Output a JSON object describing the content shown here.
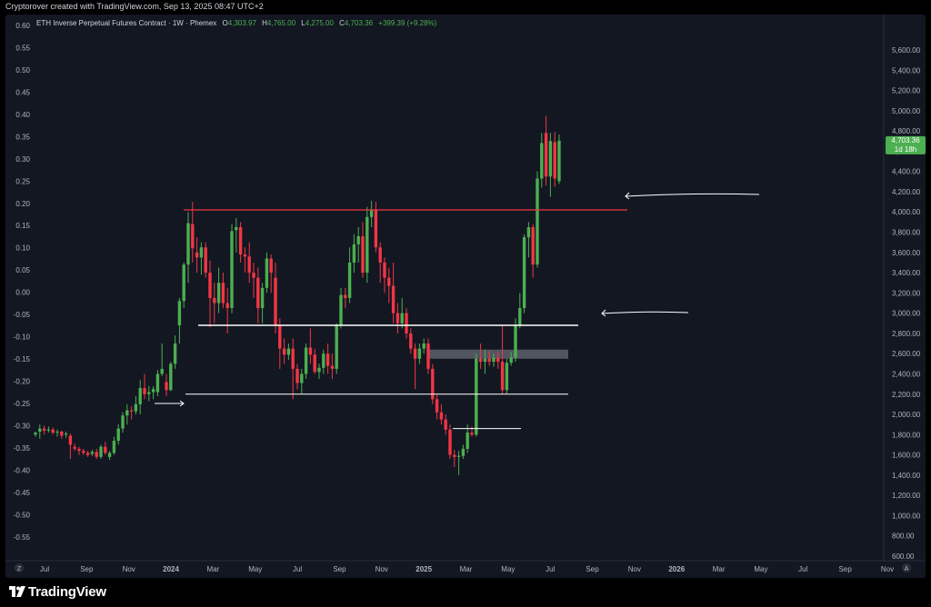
{
  "header": {
    "attribution": "Cryptorover created with TradingView.com, Sep 13, 2025 08:47 UTC+2"
  },
  "legend": {
    "symbol": "ETH Inverse Perpetual Futures Contract · 1W · Phemex",
    "o_label": "O",
    "o_value": "4,303.97",
    "h_label": "H",
    "h_value": "4,765.00",
    "l_label": "L",
    "l_value": "4,275.00",
    "c_label": "C",
    "c_value": "4,703.36",
    "change": "+399.39 (+9.28%)"
  },
  "price_tag": {
    "price": "4,703.36",
    "countdown": "1d 18h"
  },
  "footer": {
    "brand": "TradingView",
    "left_icon": "Z",
    "right_icon": "A"
  },
  "colors": {
    "background": "#131722",
    "up": "#4caf50",
    "down": "#f23645",
    "resistance": "#f23645",
    "support": "#ffffff",
    "zone": "#5d606b",
    "axis_text": "#b2b5be",
    "price_tag": "#4caf50"
  },
  "chart_data": {
    "type": "candlestick",
    "left_axis": {
      "ticks": [
        "0.60",
        "0.55",
        "0.50",
        "0.45",
        "0.40",
        "0.35",
        "0.30",
        "0.25",
        "0.20",
        "0.15",
        "0.10",
        "0.05",
        "0.00",
        "-0.05",
        "-0.10",
        "-0.15",
        "-0.20",
        "-0.25",
        "-0.30",
        "-0.35",
        "-0.40",
        "-0.45",
        "-0.50",
        "-0.55"
      ]
    },
    "right_axis": {
      "ticks": [
        "5,600.00",
        "5,400.00",
        "5,200.00",
        "5,000.00",
        "4,800.00",
        "4,600.00",
        "4,400.00",
        "4,200.00",
        "4,000.00",
        "3,800.00",
        "3,600.00",
        "3,400.00",
        "3,200.00",
        "3,000.00",
        "2,800.00",
        "2,600.00",
        "2,400.00",
        "2,200.00",
        "2,000.00",
        "1,800.00",
        "1,600.00",
        "1,400.00",
        "1,200.00",
        "1,000.00",
        "800.00",
        "600.00"
      ]
    },
    "x_axis": {
      "labels": [
        "Jul",
        "Sep",
        "Nov",
        "2024",
        "Mar",
        "May",
        "Jul",
        "Sep",
        "Nov",
        "2025",
        "Mar",
        "May",
        "Jul",
        "Sep",
        "Nov",
        "2026",
        "Mar",
        "May",
        "Jul",
        "Sep",
        "Nov"
      ],
      "bold": [
        "2024",
        "2025",
        "2026"
      ]
    },
    "horizontal_levels": [
      {
        "name": "resistance",
        "price": 4020
      },
      {
        "name": "support-upper",
        "price": 2880
      },
      {
        "name": "support-lower",
        "price": 2200
      },
      {
        "name": "local-support",
        "price": 1860
      }
    ],
    "zone": {
      "low": 2550,
      "high": 2640
    },
    "candles": [
      {
        "o": 1800,
        "h": 1830,
        "l": 1780,
        "c": 1820
      },
      {
        "o": 1830,
        "h": 1900,
        "l": 1760,
        "c": 1860
      },
      {
        "o": 1860,
        "h": 1890,
        "l": 1800,
        "c": 1840
      },
      {
        "o": 1840,
        "h": 1880,
        "l": 1820,
        "c": 1850
      },
      {
        "o": 1850,
        "h": 1870,
        "l": 1800,
        "c": 1820
      },
      {
        "o": 1820,
        "h": 1850,
        "l": 1780,
        "c": 1830
      },
      {
        "o": 1830,
        "h": 1840,
        "l": 1760,
        "c": 1790
      },
      {
        "o": 1800,
        "h": 1830,
        "l": 1770,
        "c": 1810
      },
      {
        "o": 1790,
        "h": 1810,
        "l": 1560,
        "c": 1700
      },
      {
        "o": 1680,
        "h": 1710,
        "l": 1640,
        "c": 1660
      },
      {
        "o": 1660,
        "h": 1680,
        "l": 1600,
        "c": 1640
      },
      {
        "o": 1640,
        "h": 1660,
        "l": 1600,
        "c": 1620
      },
      {
        "o": 1620,
        "h": 1640,
        "l": 1580,
        "c": 1600
      },
      {
        "o": 1610,
        "h": 1650,
        "l": 1590,
        "c": 1630
      },
      {
        "o": 1630,
        "h": 1660,
        "l": 1560,
        "c": 1580
      },
      {
        "o": 1580,
        "h": 1700,
        "l": 1560,
        "c": 1680
      },
      {
        "o": 1680,
        "h": 1730,
        "l": 1600,
        "c": 1620
      },
      {
        "o": 1580,
        "h": 1640,
        "l": 1550,
        "c": 1620
      },
      {
        "o": 1620,
        "h": 1780,
        "l": 1600,
        "c": 1740
      },
      {
        "o": 1740,
        "h": 1900,
        "l": 1700,
        "c": 1860
      },
      {
        "o": 1860,
        "h": 2020,
        "l": 1820,
        "c": 1990
      },
      {
        "o": 1990,
        "h": 2100,
        "l": 1900,
        "c": 2040
      },
      {
        "o": 2040,
        "h": 2080,
        "l": 1950,
        "c": 2030
      },
      {
        "o": 2030,
        "h": 2180,
        "l": 2000,
        "c": 2100
      },
      {
        "o": 2100,
        "h": 2340,
        "l": 2000,
        "c": 2260
      },
      {
        "o": 2260,
        "h": 2400,
        "l": 2150,
        "c": 2200
      },
      {
        "o": 2200,
        "h": 2280,
        "l": 2130,
        "c": 2220
      },
      {
        "o": 2220,
        "h": 2280,
        "l": 2150,
        "c": 2250
      },
      {
        "o": 2220,
        "h": 2440,
        "l": 2180,
        "c": 2400
      },
      {
        "o": 2400,
        "h": 2700,
        "l": 2380,
        "c": 2450
      },
      {
        "o": 2320,
        "h": 2400,
        "l": 2180,
        "c": 2240
      },
      {
        "o": 2240,
        "h": 2520,
        "l": 2230,
        "c": 2500
      },
      {
        "o": 2500,
        "h": 2780,
        "l": 2450,
        "c": 2700
      },
      {
        "o": 2880,
        "h": 3150,
        "l": 2700,
        "c": 3120
      },
      {
        "o": 3120,
        "h": 3500,
        "l": 3050,
        "c": 3480
      },
      {
        "o": 3480,
        "h": 4000,
        "l": 3300,
        "c": 3890
      },
      {
        "o": 3880,
        "h": 4100,
        "l": 3500,
        "c": 3640
      },
      {
        "o": 3600,
        "h": 3750,
        "l": 3400,
        "c": 3550
      },
      {
        "o": 3550,
        "h": 3700,
        "l": 3380,
        "c": 3650
      },
      {
        "o": 3650,
        "h": 3700,
        "l": 3350,
        "c": 3400
      },
      {
        "o": 3400,
        "h": 3520,
        "l": 2860,
        "c": 3150
      },
      {
        "o": 3150,
        "h": 3300,
        "l": 2900,
        "c": 3100
      },
      {
        "o": 3100,
        "h": 3450,
        "l": 3000,
        "c": 3300
      },
      {
        "o": 3300,
        "h": 3400,
        "l": 3050,
        "c": 3100
      },
      {
        "o": 3100,
        "h": 3250,
        "l": 2800,
        "c": 3050
      },
      {
        "o": 3050,
        "h": 3880,
        "l": 3000,
        "c": 3810
      },
      {
        "o": 3820,
        "h": 3940,
        "l": 3600,
        "c": 3850
      },
      {
        "o": 3850,
        "h": 3900,
        "l": 3500,
        "c": 3580
      },
      {
        "o": 3580,
        "h": 3650,
        "l": 3400,
        "c": 3560
      },
      {
        "o": 3560,
        "h": 3700,
        "l": 3300,
        "c": 3400
      },
      {
        "o": 3400,
        "h": 3500,
        "l": 3150,
        "c": 3350
      },
      {
        "o": 3350,
        "h": 3450,
        "l": 2900,
        "c": 3050
      },
      {
        "o": 3050,
        "h": 3300,
        "l": 2900,
        "c": 3250
      },
      {
        "o": 3250,
        "h": 3600,
        "l": 3200,
        "c": 3540
      },
      {
        "o": 3540,
        "h": 3580,
        "l": 3200,
        "c": 3400
      },
      {
        "o": 3350,
        "h": 3500,
        "l": 2800,
        "c": 2880
      },
      {
        "o": 2880,
        "h": 2950,
        "l": 2450,
        "c": 2650
      },
      {
        "o": 2650,
        "h": 2750,
        "l": 2500,
        "c": 2590
      },
      {
        "o": 2590,
        "h": 2700,
        "l": 2540,
        "c": 2650
      },
      {
        "o": 2650,
        "h": 2750,
        "l": 2150,
        "c": 2450
      },
      {
        "o": 2450,
        "h": 2500,
        "l": 2250,
        "c": 2310
      },
      {
        "o": 2310,
        "h": 2450,
        "l": 2200,
        "c": 2400
      },
      {
        "o": 2400,
        "h": 2700,
        "l": 2350,
        "c": 2660
      },
      {
        "o": 2660,
        "h": 2850,
        "l": 2500,
        "c": 2590
      },
      {
        "o": 2590,
        "h": 2650,
        "l": 2400,
        "c": 2420
      },
      {
        "o": 2420,
        "h": 2500,
        "l": 2350,
        "c": 2460
      },
      {
        "o": 2460,
        "h": 2640,
        "l": 2400,
        "c": 2600
      },
      {
        "o": 2600,
        "h": 2700,
        "l": 2400,
        "c": 2480
      },
      {
        "o": 2480,
        "h": 2600,
        "l": 2350,
        "c": 2450
      },
      {
        "o": 2450,
        "h": 2900,
        "l": 2400,
        "c": 2880
      },
      {
        "o": 2880,
        "h": 3250,
        "l": 2850,
        "c": 3180
      },
      {
        "o": 3180,
        "h": 3250,
        "l": 3050,
        "c": 3150
      },
      {
        "o": 3150,
        "h": 3650,
        "l": 3100,
        "c": 3500
      },
      {
        "o": 3500,
        "h": 3780,
        "l": 3400,
        "c": 3680
      },
      {
        "o": 3680,
        "h": 3850,
        "l": 3500,
        "c": 3760
      },
      {
        "o": 3760,
        "h": 3900,
        "l": 3350,
        "c": 3400
      },
      {
        "o": 3400,
        "h": 4050,
        "l": 3300,
        "c": 3950
      },
      {
        "o": 3950,
        "h": 4110,
        "l": 3850,
        "c": 4020
      },
      {
        "o": 4020,
        "h": 4100,
        "l": 3600,
        "c": 3650
      },
      {
        "o": 3650,
        "h": 3700,
        "l": 3300,
        "c": 3500
      },
      {
        "o": 3500,
        "h": 3550,
        "l": 3200,
        "c": 3350
      },
      {
        "o": 3350,
        "h": 3450,
        "l": 3100,
        "c": 3270
      },
      {
        "o": 3270,
        "h": 3500,
        "l": 2900,
        "c": 3000
      },
      {
        "o": 3000,
        "h": 3100,
        "l": 2800,
        "c": 2900
      },
      {
        "o": 2900,
        "h": 3150,
        "l": 2850,
        "c": 3000
      },
      {
        "o": 3000,
        "h": 3050,
        "l": 2750,
        "c": 2800
      },
      {
        "o": 2800,
        "h": 2850,
        "l": 2600,
        "c": 2650
      },
      {
        "o": 2650,
        "h": 2700,
        "l": 2250,
        "c": 2550
      },
      {
        "o": 2550,
        "h": 2700,
        "l": 2500,
        "c": 2650
      },
      {
        "o": 2650,
        "h": 2750,
        "l": 2600,
        "c": 2700
      },
      {
        "o": 2700,
        "h": 2750,
        "l": 2400,
        "c": 2450
      },
      {
        "o": 2450,
        "h": 2500,
        "l": 2100,
        "c": 2150
      },
      {
        "o": 2150,
        "h": 2200,
        "l": 1950,
        "c": 2020
      },
      {
        "o": 2020,
        "h": 2100,
        "l": 1900,
        "c": 1950
      },
      {
        "o": 1950,
        "h": 2000,
        "l": 1800,
        "c": 1850
      },
      {
        "o": 1850,
        "h": 1900,
        "l": 1560,
        "c": 1600
      },
      {
        "o": 1600,
        "h": 1650,
        "l": 1480,
        "c": 1580
      },
      {
        "o": 1580,
        "h": 1640,
        "l": 1400,
        "c": 1590
      },
      {
        "o": 1590,
        "h": 1700,
        "l": 1560,
        "c": 1660
      },
      {
        "o": 1660,
        "h": 1900,
        "l": 1620,
        "c": 1820
      },
      {
        "o": 1820,
        "h": 1880,
        "l": 1780,
        "c": 1800
      },
      {
        "o": 1800,
        "h": 2600,
        "l": 1780,
        "c": 2550
      },
      {
        "o": 2550,
        "h": 2700,
        "l": 2450,
        "c": 2520
      },
      {
        "o": 2520,
        "h": 2640,
        "l": 2400,
        "c": 2550
      },
      {
        "o": 2550,
        "h": 2630,
        "l": 2480,
        "c": 2520
      },
      {
        "o": 2520,
        "h": 2600,
        "l": 2470,
        "c": 2560
      },
      {
        "o": 2560,
        "h": 2620,
        "l": 2450,
        "c": 2520
      },
      {
        "o": 2520,
        "h": 2880,
        "l": 2200,
        "c": 2240
      },
      {
        "o": 2240,
        "h": 2550,
        "l": 2200,
        "c": 2510
      },
      {
        "o": 2510,
        "h": 2620,
        "l": 2480,
        "c": 2560
      },
      {
        "o": 2560,
        "h": 2950,
        "l": 2520,
        "c": 2880
      },
      {
        "o": 2880,
        "h": 3200,
        "l": 2850,
        "c": 3050
      },
      {
        "o": 3050,
        "h": 3780,
        "l": 3000,
        "c": 3750
      },
      {
        "o": 3750,
        "h": 3900,
        "l": 3550,
        "c": 3850
      },
      {
        "o": 3850,
        "h": 3880,
        "l": 3350,
        "c": 3480
      },
      {
        "o": 3480,
        "h": 4400,
        "l": 3450,
        "c": 4330
      },
      {
        "o": 4330,
        "h": 4780,
        "l": 4240,
        "c": 4680
      },
      {
        "o": 4780,
        "h": 4950,
        "l": 4260,
        "c": 4350
      },
      {
        "o": 4350,
        "h": 4780,
        "l": 4150,
        "c": 4700
      },
      {
        "o": 4690,
        "h": 4790,
        "l": 4250,
        "c": 4330
      },
      {
        "o": 4303.97,
        "h": 4765.0,
        "l": 4275.0,
        "c": 4703.36
      }
    ]
  }
}
